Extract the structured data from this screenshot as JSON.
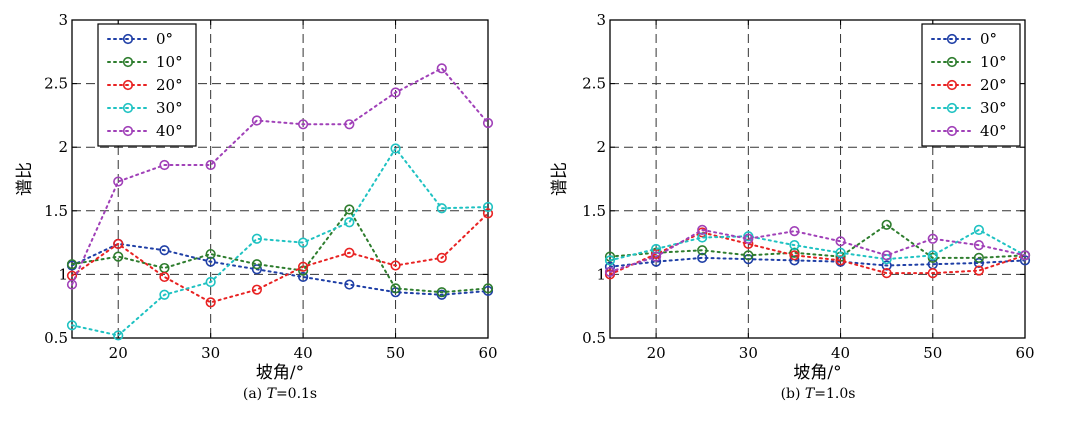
{
  "chart_data": [
    {
      "type": "line",
      "subplot_label": "(a)",
      "caption_var": "T",
      "caption_value": "=0.1s",
      "xlabel": "坡角/°",
      "ylabel": "谱比",
      "xlim": [
        15,
        60
      ],
      "ylim": [
        0.5,
        3
      ],
      "xticks": [
        "20",
        "30",
        "40",
        "50",
        "60"
      ],
      "yticks": [
        "0.5",
        "1",
        "1.5",
        "2",
        "2.5",
        "3"
      ],
      "grid": true,
      "legend_position": "top-left",
      "x": [
        15,
        20,
        25,
        30,
        35,
        40,
        45,
        50,
        55,
        60
      ],
      "series": [
        {
          "name": "0°",
          "color": "#1f3fa6",
          "values": [
            1.07,
            1.24,
            1.19,
            1.1,
            1.04,
            0.98,
            0.92,
            0.86,
            0.84,
            0.87
          ]
        },
        {
          "name": "10°",
          "color": "#2e7d2e",
          "values": [
            1.08,
            1.14,
            1.05,
            1.16,
            1.08,
            1.03,
            1.51,
            0.89,
            0.86,
            0.89
          ]
        },
        {
          "name": "20°",
          "color": "#e82222",
          "values": [
            0.99,
            1.24,
            0.98,
            0.78,
            0.88,
            1.06,
            1.17,
            1.07,
            1.13,
            1.48
          ]
        },
        {
          "name": "30°",
          "color": "#1fc2c2",
          "values": [
            0.6,
            0.52,
            0.84,
            0.94,
            1.28,
            1.25,
            1.41,
            1.99,
            1.52,
            1.53
          ]
        },
        {
          "name": "40°",
          "color": "#a040b8",
          "values": [
            0.92,
            1.73,
            1.86,
            1.86,
            2.21,
            2.18,
            2.18,
            2.43,
            2.62,
            2.19
          ]
        }
      ]
    },
    {
      "type": "line",
      "subplot_label": "(b)",
      "caption_var": "T",
      "caption_value": "=1.0s",
      "xlabel": "坡角/°",
      "ylabel": "谱比",
      "xlim": [
        15,
        60
      ],
      "ylim": [
        0.5,
        3
      ],
      "xticks": [
        "20",
        "30",
        "40",
        "50",
        "60"
      ],
      "yticks": [
        "0.5",
        "1",
        "1.5",
        "2",
        "2.5",
        "3"
      ],
      "grid": true,
      "legend_position": "top-right",
      "x": [
        15,
        20,
        25,
        30,
        35,
        40,
        45,
        50,
        55,
        60
      ],
      "series": [
        {
          "name": "0°",
          "color": "#1f3fa6",
          "values": [
            1.06,
            1.1,
            1.13,
            1.12,
            1.11,
            1.1,
            1.07,
            1.08,
            1.09,
            1.11
          ]
        },
        {
          "name": "10°",
          "color": "#2e7d2e",
          "values": [
            1.14,
            1.17,
            1.19,
            1.15,
            1.17,
            1.14,
            1.39,
            1.13,
            1.13,
            1.15
          ]
        },
        {
          "name": "20°",
          "color": "#e82222",
          "values": [
            1.0,
            1.16,
            1.33,
            1.24,
            1.15,
            1.11,
            1.01,
            1.01,
            1.03,
            1.15
          ]
        },
        {
          "name": "30°",
          "color": "#1fc2c2",
          "values": [
            1.11,
            1.2,
            1.29,
            1.3,
            1.23,
            1.17,
            1.12,
            1.15,
            1.35,
            1.15
          ]
        },
        {
          "name": "40°",
          "color": "#a040b8",
          "values": [
            1.02,
            1.14,
            1.35,
            1.28,
            1.34,
            1.26,
            1.15,
            1.28,
            1.23,
            1.15
          ]
        }
      ]
    }
  ]
}
